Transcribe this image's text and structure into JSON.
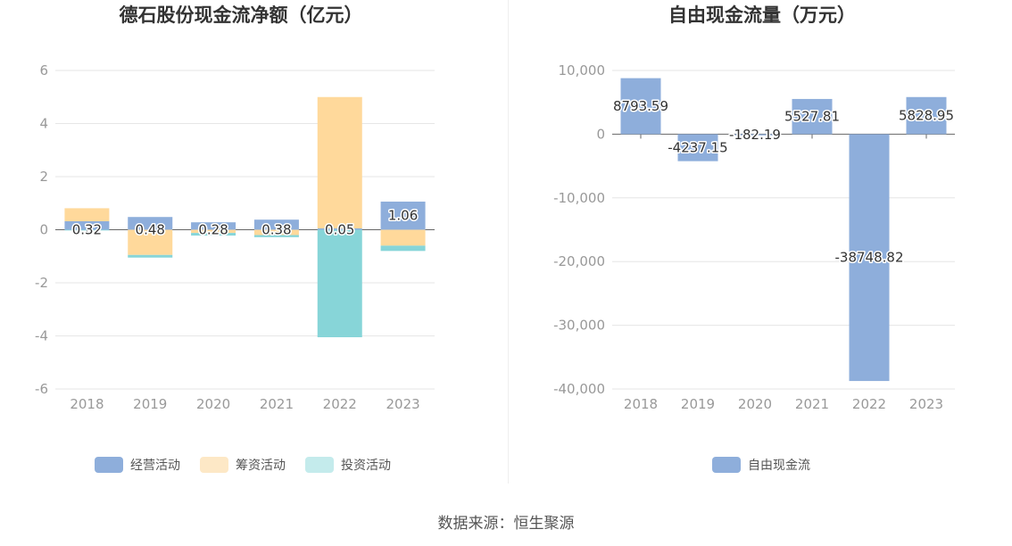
{
  "chart_data": [
    {
      "type": "bar",
      "stacked": true,
      "title": "德石股份现金流净额（亿元）",
      "categories": [
        "2018",
        "2019",
        "2020",
        "2021",
        "2022",
        "2023"
      ],
      "ylim": [
        -6,
        6
      ],
      "yticks": [
        6,
        4,
        2,
        0,
        -2,
        -4,
        -6
      ],
      "ytick_labels": [
        "6",
        "4",
        "2",
        "0",
        "-2",
        "-4",
        "-6"
      ],
      "grid": true,
      "legend": "bottom",
      "series": [
        {
          "name": "经营活动",
          "color": "#8eaedb",
          "values": [
            0.32,
            0.48,
            0.28,
            0.38,
            0.05,
            1.06
          ],
          "labels": [
            "0.32",
            "0.48",
            "0.28",
            "0.38",
            "0.05",
            "1.06"
          ]
        },
        {
          "name": "筹资活动",
          "color": "#ffd99b",
          "values": [
            0.49,
            -0.95,
            -0.12,
            -0.2,
            4.95,
            -0.6
          ]
        },
        {
          "name": "投资活动",
          "color": "#87d5d8",
          "values": [
            -0.02,
            -0.1,
            -0.1,
            -0.08,
            -4.05,
            -0.2
          ]
        }
      ],
      "legend_colors": [
        "#8eaedb",
        "#fde8c6",
        "#c4ebec"
      ]
    },
    {
      "type": "bar",
      "title": "自由现金流量（万元）",
      "categories": [
        "2018",
        "2019",
        "2020",
        "2021",
        "2022",
        "2023"
      ],
      "ylim": [
        -40000,
        10000
      ],
      "yticks": [
        10000,
        0,
        -10000,
        -20000,
        -30000,
        -40000
      ],
      "ytick_labels": [
        "10,000",
        "0",
        "-10,000",
        "-20,000",
        "-30,000",
        "-40,000"
      ],
      "grid": true,
      "legend": "bottom",
      "series": [
        {
          "name": "自由现金流",
          "color": "#8eaedb",
          "values": [
            8793.59,
            -4237.15,
            -182.19,
            5527.81,
            -38748.82,
            5828.95
          ],
          "labels": [
            "8793.59",
            "-4237.15",
            "-182.19",
            "5527.81",
            "-38748.82",
            "5828.95"
          ]
        }
      ]
    }
  ],
  "source": "数据来源：恒生聚源"
}
